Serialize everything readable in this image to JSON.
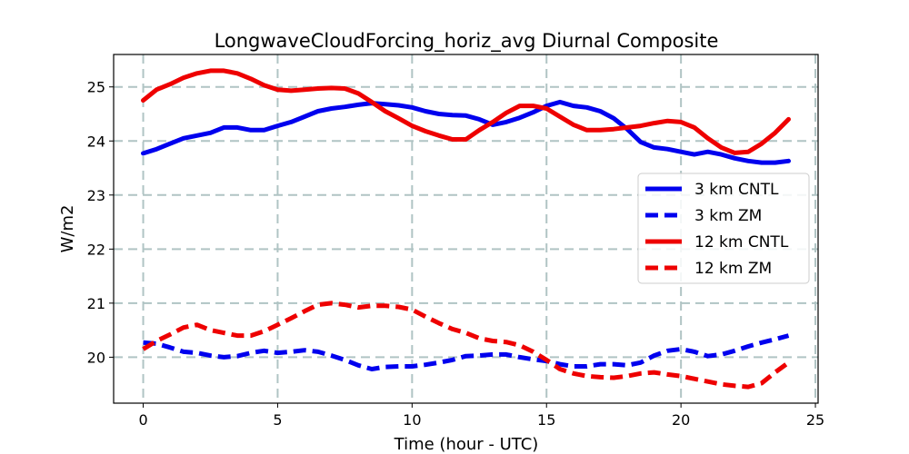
{
  "chart_data": {
    "type": "line",
    "title": "LongwaveCloudForcing_horiz_avg Diurnal Composite",
    "xlabel": "Time (hour - UTC)",
    "ylabel": "W/m2",
    "xlim": [
      -1.1,
      25.1
    ],
    "ylim": [
      19.15,
      25.6
    ],
    "xticks": [
      0,
      5,
      10,
      15,
      20,
      25
    ],
    "yticks": [
      20,
      21,
      22,
      23,
      24,
      25
    ],
    "grid": true,
    "legend_position": "center-right",
    "series": [
      {
        "name": "3 km CNTL",
        "color": "#0000ee",
        "style": "solid",
        "x": [
          0,
          0.5,
          1,
          1.5,
          2,
          2.5,
          3,
          3.5,
          4,
          4.5,
          5,
          5.5,
          6,
          6.5,
          7,
          7.5,
          8,
          8.5,
          9,
          9.5,
          10,
          10.5,
          11,
          11.5,
          12,
          12.5,
          13,
          13.5,
          14,
          14.5,
          15,
          15.5,
          16,
          16.5,
          17,
          17.5,
          18,
          18.5,
          19,
          19.5,
          20,
          20.5,
          21,
          21.5,
          22,
          22.5,
          23,
          23.5,
          24
        ],
        "y": [
          23.77,
          23.85,
          23.95,
          24.05,
          24.1,
          24.15,
          24.25,
          24.25,
          24.2,
          24.2,
          24.28,
          24.35,
          24.45,
          24.55,
          24.6,
          24.63,
          24.67,
          24.7,
          24.68,
          24.66,
          24.62,
          24.55,
          24.5,
          24.48,
          24.47,
          24.4,
          24.3,
          24.35,
          24.43,
          24.53,
          24.65,
          24.72,
          24.65,
          24.62,
          24.55,
          24.42,
          24.22,
          23.98,
          23.88,
          23.85,
          23.8,
          23.75,
          23.8,
          23.75,
          23.68,
          23.63,
          23.6,
          23.6,
          23.63
        ]
      },
      {
        "name": "3 km ZM",
        "color": "#0000ee",
        "style": "dashed",
        "x": [
          0,
          0.5,
          1,
          1.5,
          2,
          2.5,
          3,
          3.5,
          4,
          4.5,
          5,
          5.5,
          6,
          6.5,
          7,
          7.5,
          8,
          8.5,
          9,
          9.5,
          10,
          10.5,
          11,
          11.5,
          12,
          12.5,
          13,
          13.5,
          14,
          14.5,
          15,
          15.5,
          16,
          16.5,
          17,
          17.5,
          18,
          18.5,
          19,
          19.5,
          20,
          20.5,
          21,
          21.5,
          22,
          22.5,
          23,
          23.5,
          24
        ],
        "y": [
          20.27,
          20.25,
          20.18,
          20.1,
          20.08,
          20.03,
          20.0,
          20.02,
          20.08,
          20.12,
          20.08,
          20.1,
          20.13,
          20.1,
          20.03,
          19.95,
          19.85,
          19.78,
          19.82,
          19.83,
          19.83,
          19.86,
          19.9,
          19.95,
          20.02,
          20.03,
          20.05,
          20.05,
          20.0,
          19.96,
          19.93,
          19.87,
          19.83,
          19.83,
          19.87,
          19.87,
          19.85,
          19.9,
          20.03,
          20.12,
          20.15,
          20.1,
          20.02,
          20.05,
          20.12,
          20.2,
          20.27,
          20.33,
          20.4
        ]
      },
      {
        "name": "12 km CNTL",
        "color": "#ee0000",
        "style": "solid",
        "x": [
          0,
          0.5,
          1,
          1.5,
          2,
          2.5,
          3,
          3.5,
          4,
          4.5,
          5,
          5.5,
          6,
          6.5,
          7,
          7.5,
          8,
          8.5,
          9,
          9.5,
          10,
          10.5,
          11,
          11.5,
          12,
          12.5,
          13,
          13.5,
          14,
          14.5,
          15,
          15.5,
          16,
          16.5,
          17,
          17.5,
          18,
          18.5,
          19,
          19.5,
          20,
          20.5,
          21,
          21.5,
          22,
          22.5,
          23,
          23.5,
          24
        ],
        "y": [
          24.75,
          24.95,
          25.05,
          25.17,
          25.25,
          25.3,
          25.3,
          25.25,
          25.15,
          25.03,
          24.95,
          24.93,
          24.95,
          24.97,
          24.98,
          24.97,
          24.88,
          24.72,
          24.55,
          24.42,
          24.28,
          24.18,
          24.1,
          24.03,
          24.03,
          24.2,
          24.35,
          24.52,
          24.65,
          24.65,
          24.6,
          24.45,
          24.3,
          24.2,
          24.2,
          24.22,
          24.25,
          24.28,
          24.33,
          24.37,
          24.35,
          24.25,
          24.05,
          23.88,
          23.78,
          23.8,
          23.95,
          24.15,
          24.4
        ]
      },
      {
        "name": "12 km ZM",
        "color": "#ee0000",
        "style": "dashed",
        "x": [
          0,
          0.5,
          1,
          1.5,
          2,
          2.5,
          3,
          3.5,
          4,
          4.5,
          5,
          5.5,
          6,
          6.5,
          7,
          7.5,
          8,
          8.5,
          9,
          9.5,
          10,
          10.5,
          11,
          11.5,
          12,
          12.5,
          13,
          13.5,
          14,
          14.5,
          15,
          15.5,
          16,
          16.5,
          17,
          17.5,
          18,
          18.5,
          19,
          19.5,
          20,
          20.5,
          21,
          21.5,
          22,
          22.5,
          23,
          23.5,
          24
        ],
        "y": [
          20.15,
          20.3,
          20.42,
          20.55,
          20.6,
          20.5,
          20.45,
          20.4,
          20.4,
          20.48,
          20.6,
          20.72,
          20.85,
          20.97,
          21.0,
          20.97,
          20.92,
          20.95,
          20.95,
          20.93,
          20.88,
          20.75,
          20.63,
          20.52,
          20.45,
          20.35,
          20.3,
          20.28,
          20.22,
          20.1,
          19.95,
          19.78,
          19.7,
          19.65,
          19.63,
          19.62,
          19.65,
          19.7,
          19.72,
          19.68,
          19.65,
          19.6,
          19.55,
          19.5,
          19.47,
          19.45,
          19.52,
          19.72,
          19.9
        ]
      }
    ]
  }
}
